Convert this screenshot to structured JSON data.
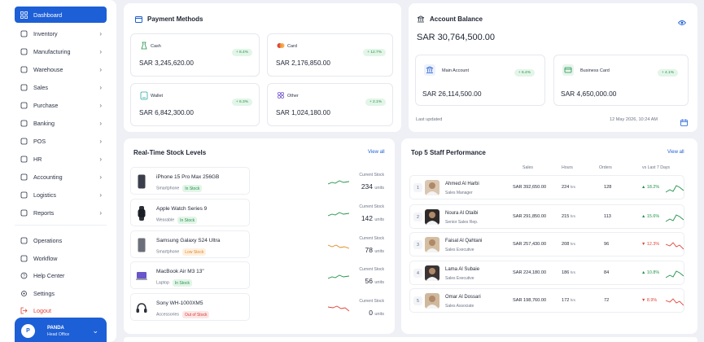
{
  "sidebar": {
    "items": [
      {
        "label": "Dashboard",
        "icon": "grid-icon",
        "active": true
      },
      {
        "label": "Inventory",
        "icon": "box-icon"
      },
      {
        "label": "Manufacturing",
        "icon": "factory-icon"
      },
      {
        "label": "Warehouse",
        "icon": "warehouse-icon"
      },
      {
        "label": "Sales",
        "icon": "cart-icon"
      },
      {
        "label": "Purchase",
        "icon": "bag-icon"
      },
      {
        "label": "Banking",
        "icon": "bank-icon"
      },
      {
        "label": "POS",
        "icon": "tag-icon"
      },
      {
        "label": "HR",
        "icon": "people-icon"
      },
      {
        "label": "Accounting",
        "icon": "accounting-icon"
      },
      {
        "label": "Logistics",
        "icon": "truck-icon"
      },
      {
        "label": "Reports",
        "icon": "document-icon"
      }
    ],
    "secondary": [
      {
        "label": "Operations",
        "icon": "operations-icon"
      },
      {
        "label": "Workflow",
        "icon": "workflow-icon"
      },
      {
        "label": "Help Center",
        "icon": "help-icon"
      },
      {
        "label": "Settings",
        "icon": "gear-icon"
      },
      {
        "label": "Logout",
        "icon": "logout-icon"
      }
    ],
    "user": {
      "initial": "P",
      "name": "PANDA",
      "role": "Head Office"
    }
  },
  "payment_methods": {
    "title": "Payment Methods",
    "items": [
      {
        "label": "Cash",
        "amount": "SAR 3,245,620.00",
        "change": "+ 8.4%"
      },
      {
        "label": "Card",
        "amount": "SAR 2,176,850.00",
        "change": "+ 12.7%"
      },
      {
        "label": "Wallet",
        "amount": "SAR 6,842,300.00",
        "change": "+ 6.3%"
      },
      {
        "label": "Other",
        "amount": "SAR 1,024,180.00",
        "change": "+ 2.1%"
      }
    ]
  },
  "account_balance": {
    "title": "Account Balance",
    "total": "SAR 30,764,500.00",
    "main": {
      "label": "Main Account",
      "amount": "SAR 26,114,500.00",
      "change": "+ 6.4%"
    },
    "business": {
      "label": "Business Card",
      "amount": "SAR 4,650,000.00",
      "change": "+ 4.1%"
    },
    "updated_label": "Last updated",
    "updated_value": "12 May 2026, 10:24 AM"
  },
  "stock": {
    "title": "Real-Time Stock Levels",
    "view_all": "View all",
    "current_label": "Current Stock",
    "rows": [
      {
        "name": "iPhone 15 Pro Max 256GB",
        "category": "Smartphone",
        "status": "In Stock",
        "qty": "234",
        "unit": "units",
        "status_kind": "in"
      },
      {
        "name": "Apple Watch Series 9",
        "category": "Wearable",
        "status": "In Stock",
        "qty": "142",
        "unit": "units",
        "status_kind": "in"
      },
      {
        "name": "Samsung Galaxy S24 Ultra",
        "category": "Smartphone",
        "status": "Low Stock",
        "qty": "78",
        "unit": "units",
        "status_kind": "low"
      },
      {
        "name": "MacBook Air M3 13\"",
        "category": "Laptop",
        "status": "In Stock",
        "qty": "56",
        "unit": "units",
        "status_kind": "in"
      },
      {
        "name": "Sony WH-1000XM5",
        "category": "Accessories",
        "status": "Out of Stock",
        "qty": "0",
        "unit": "units",
        "status_kind": "out"
      }
    ]
  },
  "staff": {
    "title": "Top 5 Staff Performance",
    "view_all": "View all",
    "headers": {
      "sales": "Sales",
      "hours": "Hours",
      "orders": "Orders",
      "trend": "vs Last 7 Days"
    },
    "rows": [
      {
        "rank": "1",
        "name": "Ahmed Al Harbi",
        "role": "Sales Manager",
        "sales": "SAR 392,650.00",
        "hours": "224",
        "hours_unit": "hrs",
        "orders": "128",
        "trend": "▲ 18.2%",
        "trend_dir": "up"
      },
      {
        "rank": "2",
        "name": "Noura Al Otaibi",
        "role": "Senior Sales Rep.",
        "sales": "SAR 291,850.00",
        "hours": "215",
        "hours_unit": "hrs",
        "orders": "113",
        "trend": "▲ 15.6%",
        "trend_dir": "up"
      },
      {
        "rank": "3",
        "name": "Faisal Al Qahtani",
        "role": "Sales Executive",
        "sales": "SAR 257,430.00",
        "hours": "208",
        "hours_unit": "hrs",
        "orders": "96",
        "trend": "▼ 12.3%",
        "trend_dir": "down"
      },
      {
        "rank": "4",
        "name": "Lama Al Subaie",
        "role": "Sales Executive",
        "sales": "SAR 224,180.00",
        "hours": "186",
        "hours_unit": "hrs",
        "orders": "84",
        "trend": "▲ 10.8%",
        "trend_dir": "up"
      },
      {
        "rank": "5",
        "name": "Omar Al Dossari",
        "role": "Sales Associate",
        "sales": "SAR 198,760.00",
        "hours": "172",
        "hours_unit": "hrs",
        "orders": "72",
        "trend": "▼ 8.9%",
        "trend_dir": "down"
      }
    ]
  },
  "colors": {
    "accent": "#1d5fd6",
    "up": "#22934a",
    "down": "#e0443a",
    "low": "#e08a25"
  }
}
